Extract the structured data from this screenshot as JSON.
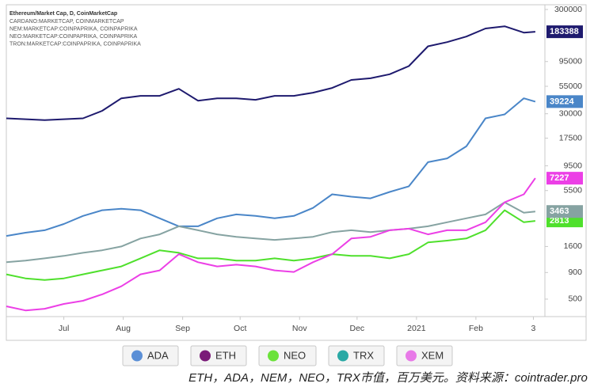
{
  "chart_data": {
    "type": "line",
    "title": "Ethereum/Market Cap, D, CoinMarketCap",
    "subtitles": [
      "CARDANO:MARKETCAP, COINMARKETCAP",
      "NEM:MARKETCAP:COINPAPRIKA, COINPAPRIKA",
      "NEO:MARKETCAP:COINPAPRIKA, COINPAPRIKA",
      "TRON:MARKETCAP:COINPAPRIKA, COINPAPRIKA"
    ],
    "caption": "ETH，ADA，NEM，NEO，TRX市值，百万美元。资料来源：cointrader.pro",
    "log_scale": true,
    "x": [
      0,
      10,
      20,
      30,
      40,
      50,
      60,
      70,
      80,
      90,
      100,
      110,
      120,
      130,
      140,
      150,
      160,
      170,
      180,
      190,
      200,
      210,
      220,
      230,
      240,
      250,
      260,
      270,
      276
    ],
    "xlim": [
      0,
      281
    ],
    "xticks": [
      {
        "value": 30,
        "label": "Jul"
      },
      {
        "value": 61,
        "label": "Aug"
      },
      {
        "value": 92,
        "label": "Sep"
      },
      {
        "value": 122,
        "label": "Oct"
      },
      {
        "value": 153,
        "label": "Nov"
      },
      {
        "value": 183,
        "label": "Dec"
      },
      {
        "value": 214,
        "label": "2021"
      },
      {
        "value": 245,
        "label": "Feb"
      },
      {
        "value": 275,
        "label": "3"
      }
    ],
    "ylim": [
      340,
      333000
    ],
    "yticks": [
      300000,
      95000,
      55000,
      30000,
      17500,
      9500,
      5500,
      1600,
      900,
      500
    ],
    "series": [
      {
        "name": "ADA",
        "color": "#4a86c8",
        "marker_color": "#5b8fd6",
        "values": [
          2020,
          2170,
          2290,
          2630,
          3140,
          3560,
          3680,
          3560,
          2980,
          2500,
          2500,
          2980,
          3250,
          3140,
          2980,
          3140,
          3750,
          5060,
          4800,
          4630,
          5330,
          6040,
          10300,
          11200,
          14600,
          27100,
          29600,
          42200,
          39224
        ]
      },
      {
        "name": "ETH",
        "color": "#1e1a6e",
        "marker_color": "#7a1a78",
        "values": [
          27100,
          26600,
          26100,
          26600,
          27100,
          32000,
          42200,
          44500,
          44500,
          52000,
          40000,
          42200,
          42200,
          40800,
          44500,
          44500,
          47800,
          53000,
          63300,
          65600,
          71800,
          86000,
          133000,
          146000,
          165000,
          197000,
          207000,
          180000,
          183388
        ]
      },
      {
        "name": "NEO",
        "color": "#4fe02c",
        "marker_color": "#6be23a",
        "values": [
          865,
          791,
          764,
          791,
          865,
          944,
          1030,
          1230,
          1470,
          1390,
          1230,
          1230,
          1170,
          1170,
          1230,
          1170,
          1230,
          1350,
          1300,
          1300,
          1230,
          1350,
          1750,
          1820,
          1910,
          2290,
          3560,
          2730,
          2813
        ]
      },
      {
        "name": "TRX",
        "color": "#86a3a2",
        "marker_color": "#2aa9a5",
        "values": [
          1130,
          1170,
          1230,
          1300,
          1390,
          1470,
          1600,
          1910,
          2090,
          2500,
          2290,
          2090,
          1980,
          1910,
          1850,
          1910,
          1980,
          2200,
          2290,
          2200,
          2290,
          2370,
          2500,
          2730,
          2980,
          3250,
          4240,
          3370,
          3463
        ]
      },
      {
        "name": "XEM",
        "color": "#ec3fe6",
        "marker_color": "#e87ae8",
        "values": [
          427,
          390,
          404,
          450,
          482,
          556,
          664,
          865,
          944,
          1350,
          1130,
          1030,
          1070,
          1030,
          944,
          912,
          1130,
          1350,
          1910,
          1980,
          2290,
          2370,
          2090,
          2290,
          2290,
          2730,
          4240,
          5060,
          7227
        ]
      }
    ]
  }
}
